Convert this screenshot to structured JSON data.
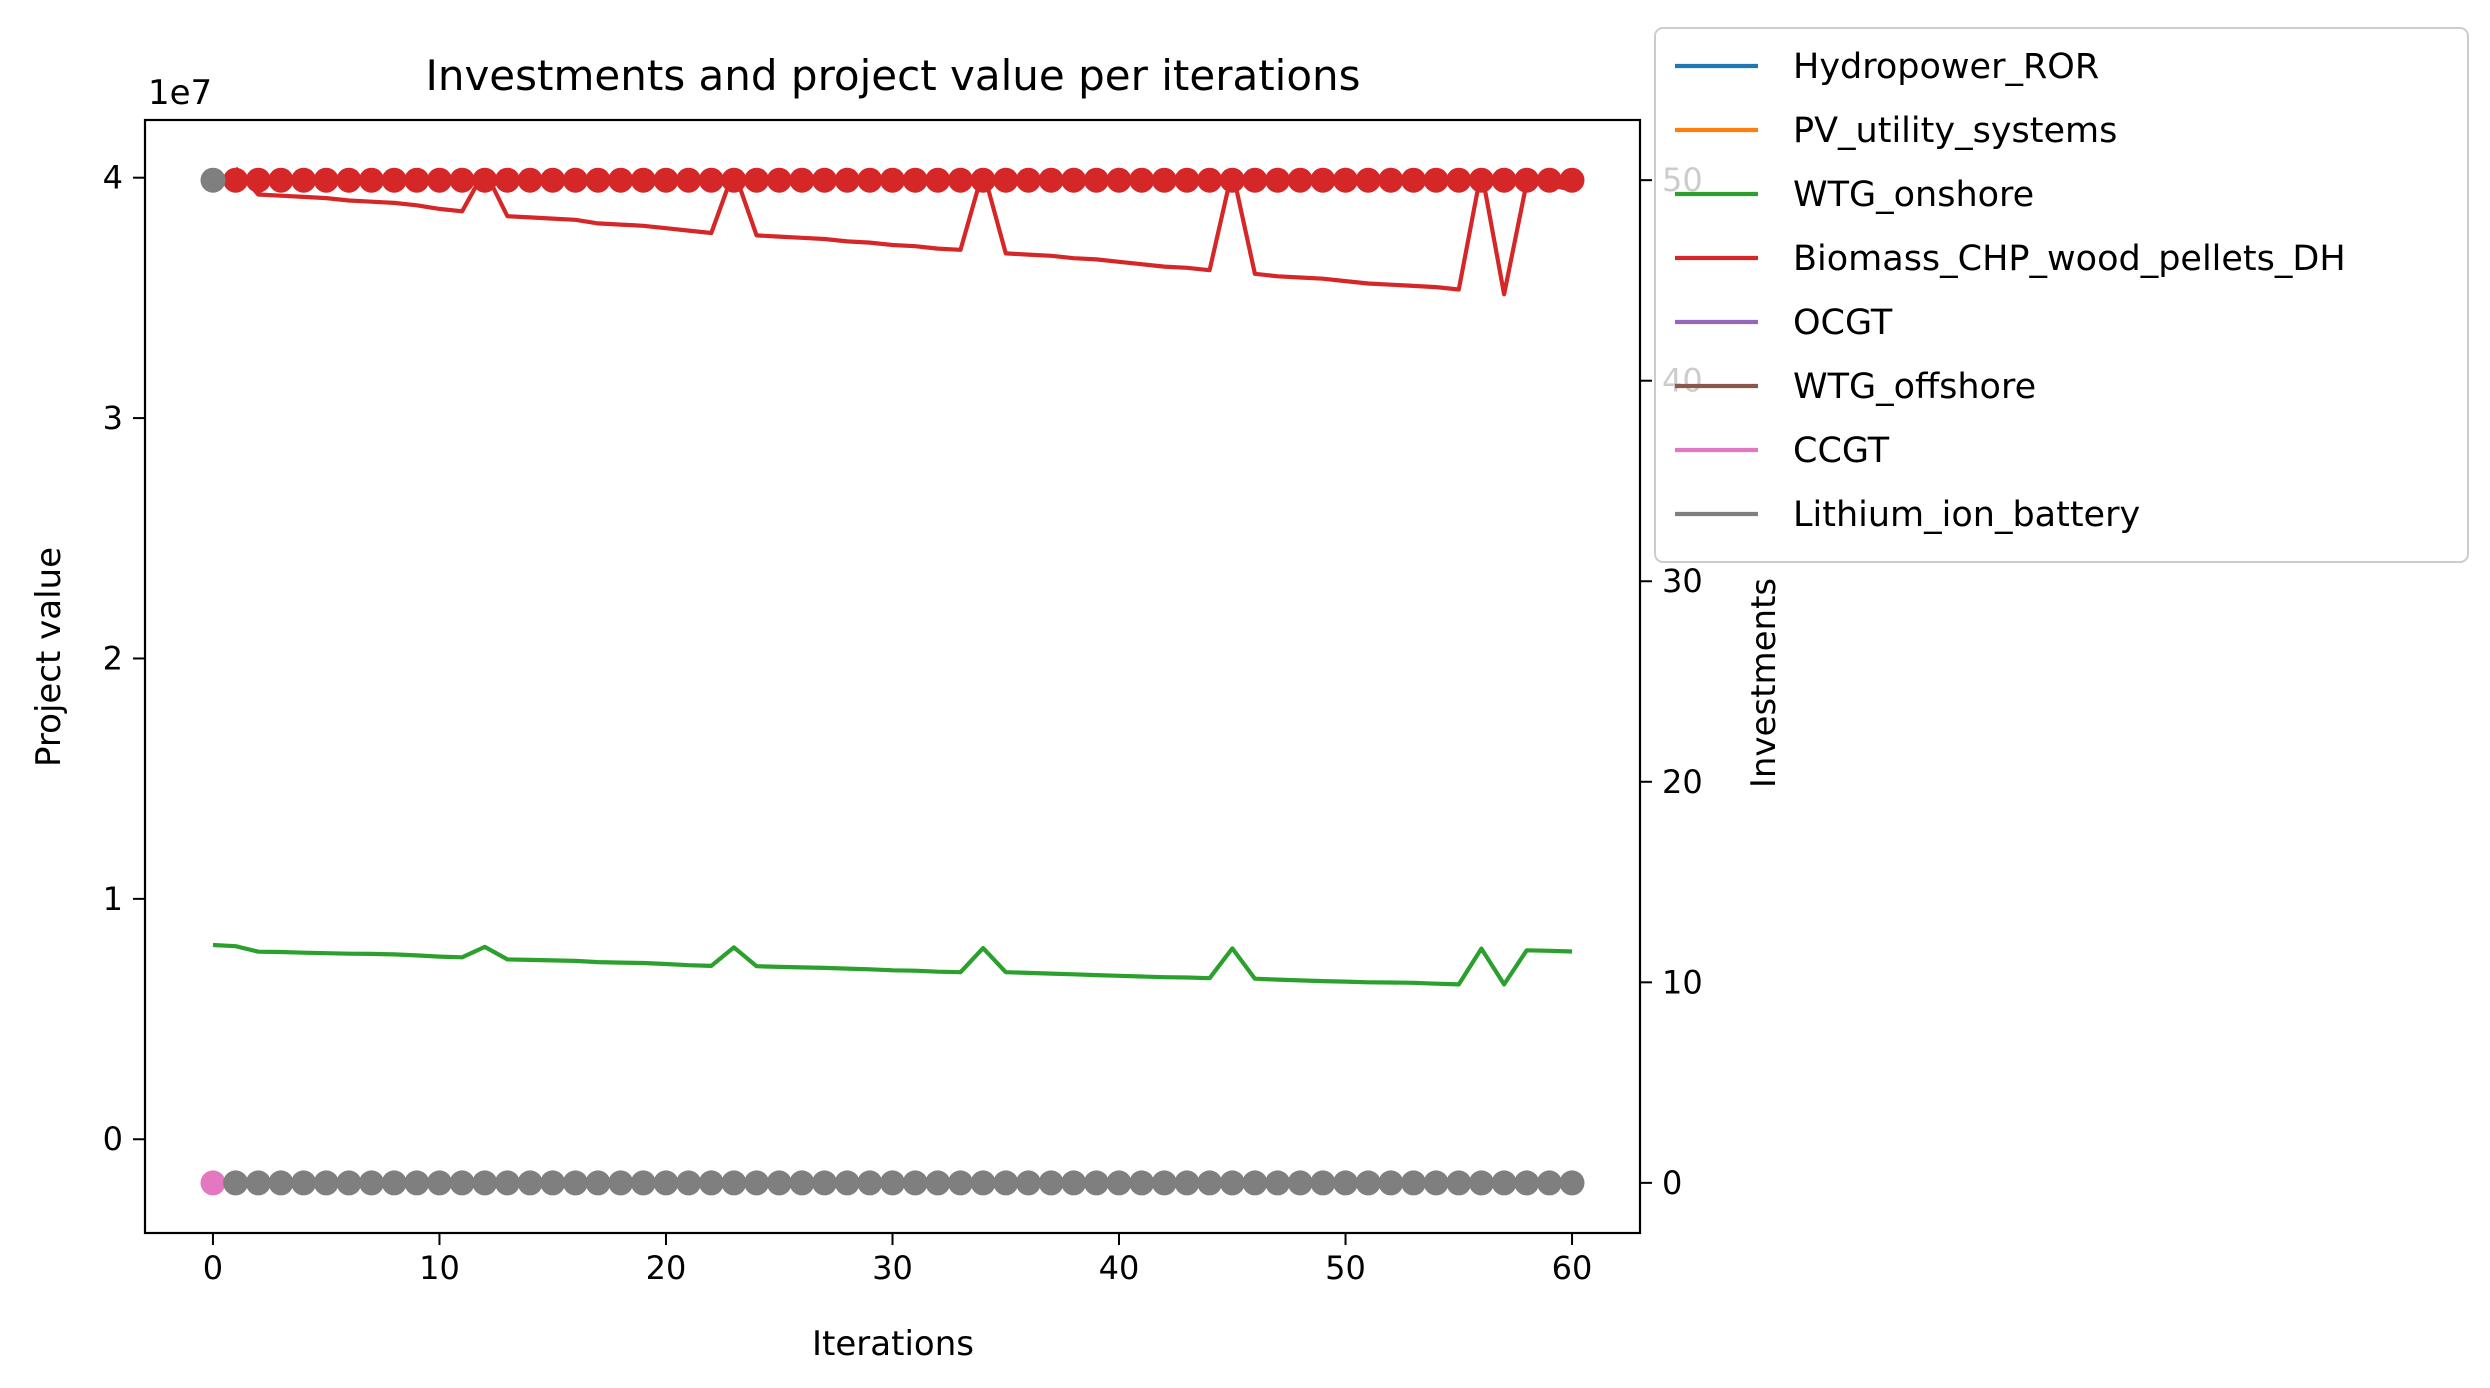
{
  "chart_data": {
    "type": "line",
    "title": "Investments and project value per iterations",
    "xlabel": "Iterations",
    "ylabel_left": "Project value",
    "ylabel_right": "Investments",
    "left_axis_offset_text": "1e7",
    "xlim": [
      -3,
      63
    ],
    "ylim_left": [
      -3.9,
      42.4
    ],
    "ylim_right": [
      -2.5,
      53
    ],
    "xticks": [
      0,
      10,
      20,
      30,
      40,
      50,
      60
    ],
    "yticks_left": [
      {
        "value": 0,
        "label": "0"
      },
      {
        "value": 10,
        "label": "1"
      },
      {
        "value": 20,
        "label": "2"
      },
      {
        "value": 30,
        "label": "3"
      },
      {
        "value": 40,
        "label": "4"
      }
    ],
    "yticks_right": [
      0,
      10,
      20,
      30,
      40,
      50
    ],
    "legend_position": "outside top-right",
    "series": [
      {
        "name": "Hydropower_ROR",
        "color": "#1f77b4",
        "project_value": [],
        "investments": []
      },
      {
        "name": "PV_utility_systems",
        "color": "#ff7f0e",
        "project_value": [],
        "investments": []
      },
      {
        "name": "WTG_onshore",
        "color": "#2ca02c",
        "project_value": [
          8.08,
          8.03,
          7.8,
          7.79,
          7.76,
          7.74,
          7.72,
          7.71,
          7.69,
          7.65,
          7.6,
          7.57,
          8.0,
          7.48,
          7.46,
          7.44,
          7.42,
          7.37,
          7.35,
          7.33,
          7.29,
          7.24,
          7.21,
          7.98,
          7.2,
          7.17,
          7.15,
          7.13,
          7.1,
          7.07,
          7.03,
          7.01,
          6.97,
          6.95,
          7.95,
          6.95,
          6.92,
          6.89,
          6.86,
          6.83,
          6.8,
          6.77,
          6.74,
          6.73,
          6.7,
          7.94,
          6.68,
          6.64,
          6.61,
          6.58,
          6.56,
          6.53,
          6.52,
          6.51,
          6.47,
          6.44,
          7.93,
          6.44,
          7.86,
          7.84,
          7.81
        ],
        "investments": []
      },
      {
        "name": "Biomass_CHP_wood_pellets_DH",
        "color": "#d62728",
        "project_value": [
          null,
          40.4,
          39.3,
          39.25,
          39.2,
          39.15,
          39.05,
          39.0,
          38.95,
          38.85,
          38.7,
          38.6,
          40.3,
          38.4,
          38.35,
          38.3,
          38.25,
          38.1,
          38.05,
          38.0,
          37.9,
          37.8,
          37.7,
          40.3,
          37.6,
          37.55,
          37.5,
          37.45,
          37.35,
          37.3,
          37.2,
          37.15,
          37.05,
          37.0,
          40.3,
          36.85,
          36.8,
          36.75,
          36.65,
          36.6,
          36.5,
          36.4,
          36.3,
          36.25,
          36.15,
          40.3,
          36.0,
          35.9,
          35.85,
          35.8,
          35.7,
          35.6,
          35.55,
          35.5,
          35.45,
          35.35,
          40.3,
          35.15,
          39.8,
          39.7,
          39.5
        ],
        "investments": [
          null,
          50,
          50,
          50,
          50,
          50,
          50,
          50,
          50,
          50,
          50,
          50,
          50,
          50,
          50,
          50,
          50,
          50,
          50,
          50,
          50,
          50,
          50,
          50,
          50,
          50,
          50,
          50,
          50,
          50,
          50,
          50,
          50,
          50,
          50,
          50,
          50,
          50,
          50,
          50,
          50,
          50,
          50,
          50,
          50,
          50,
          50,
          50,
          50,
          50,
          50,
          50,
          50,
          50,
          50,
          50,
          50,
          50,
          50,
          50,
          50
        ]
      },
      {
        "name": "OCGT",
        "color": "#9467bd",
        "project_value": [],
        "investments": []
      },
      {
        "name": "WTG_offshore",
        "color": "#8c564b",
        "project_value": [],
        "investments": []
      },
      {
        "name": "CCGT",
        "color": "#e377c2",
        "project_value": [],
        "investments": [
          0
        ]
      },
      {
        "name": "Lithium_ion_battery",
        "color": "#7f7f7f",
        "project_value": [],
        "investments": [
          50,
          0,
          0,
          0,
          0,
          0,
          0,
          0,
          0,
          0,
          0,
          0,
          0,
          0,
          0,
          0,
          0,
          0,
          0,
          0,
          0,
          0,
          0,
          0,
          0,
          0,
          0,
          0,
          0,
          0,
          0,
          0,
          0,
          0,
          0,
          0,
          0,
          0,
          0,
          0,
          0,
          0,
          0,
          0,
          0,
          0,
          0,
          0,
          0,
          0,
          0,
          0,
          0,
          0,
          0,
          0,
          0,
          0,
          0,
          0,
          0
        ]
      }
    ]
  }
}
